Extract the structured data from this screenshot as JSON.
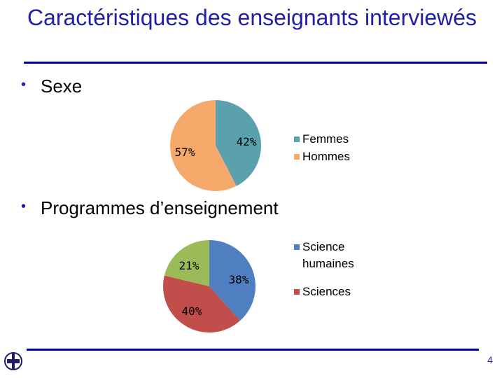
{
  "slide": {
    "title": "Caractéristiques des enseignants interviewés",
    "section1": "Sexe",
    "section2": "Programmes d’enseignement",
    "page_number": "4",
    "bullet": "•"
  },
  "chart_data": [
    {
      "type": "pie",
      "slices": [
        {
          "label": "Femmes",
          "value": 42,
          "display": "42%",
          "color": "#5aa0ad"
        },
        {
          "label": "Hommes",
          "value": 57,
          "display": "57%",
          "color": "#f4a96a"
        }
      ]
    },
    {
      "type": "pie",
      "slices": [
        {
          "label": "Science humaines",
          "value": 38,
          "display": "38%",
          "color": "#4f7ec1"
        },
        {
          "label": "Sciences",
          "value": 40,
          "display": "40%",
          "color": "#c24e4c"
        },
        {
          "label": "",
          "value": 21,
          "display": "21%",
          "color": "#9bbb59"
        }
      ]
    }
  ]
}
